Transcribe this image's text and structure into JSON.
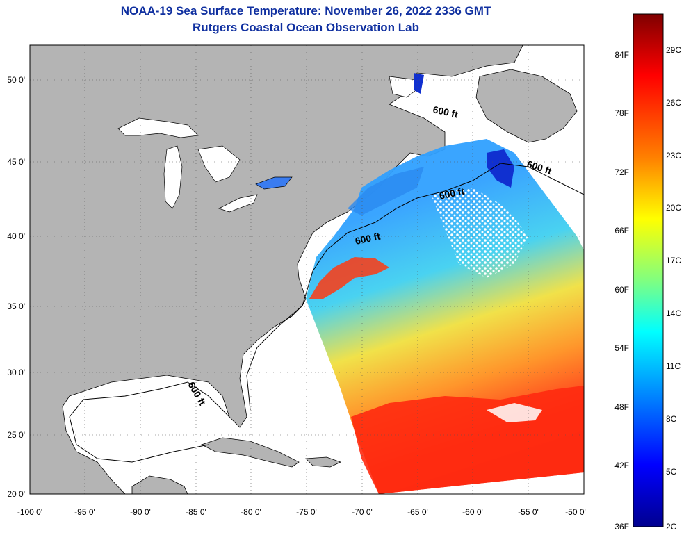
{
  "title": "NOAA-19 Sea Surface Temperature:  November 26, 2022 2336 GMT",
  "subtitle": "Rutgers Coastal Ocean Observation Lab",
  "map": {
    "lon_range": [
      -100,
      -50
    ],
    "lat_range": [
      20,
      52
    ],
    "x_ticks": [
      "-100 0'",
      "-95 0'",
      "-90 0'",
      "-85 0'",
      "-80 0'",
      "-75 0'",
      "-70 0'",
      "-65 0'",
      "-60 0'",
      "-55 0'",
      "-50 0'"
    ],
    "y_ticks": [
      "50 0'",
      "45 0'",
      "40 0'",
      "35 0'",
      "30 0'",
      "25 0'",
      "20 0'"
    ],
    "contour_labels": [
      "600 ft",
      "600 ft",
      "600 ft",
      "600 ft",
      "600 ft"
    ],
    "land_color": "#b4b4b4",
    "water_color": "#ffffff"
  },
  "colorbar": {
    "f_labels": [
      "84F",
      "78F",
      "72F",
      "66F",
      "60F",
      "54F",
      "48F",
      "42F",
      "36F"
    ],
    "c_labels": [
      "29C",
      "26C",
      "23C",
      "20C",
      "17C",
      "14C",
      "11C",
      "8C",
      "5C",
      "2C"
    ],
    "stops": [
      "#7f0000",
      "#ff0000",
      "#ff8000",
      "#ffff00",
      "#80ff80",
      "#00ffff",
      "#0080ff",
      "#0000ff",
      "#00008f"
    ]
  }
}
